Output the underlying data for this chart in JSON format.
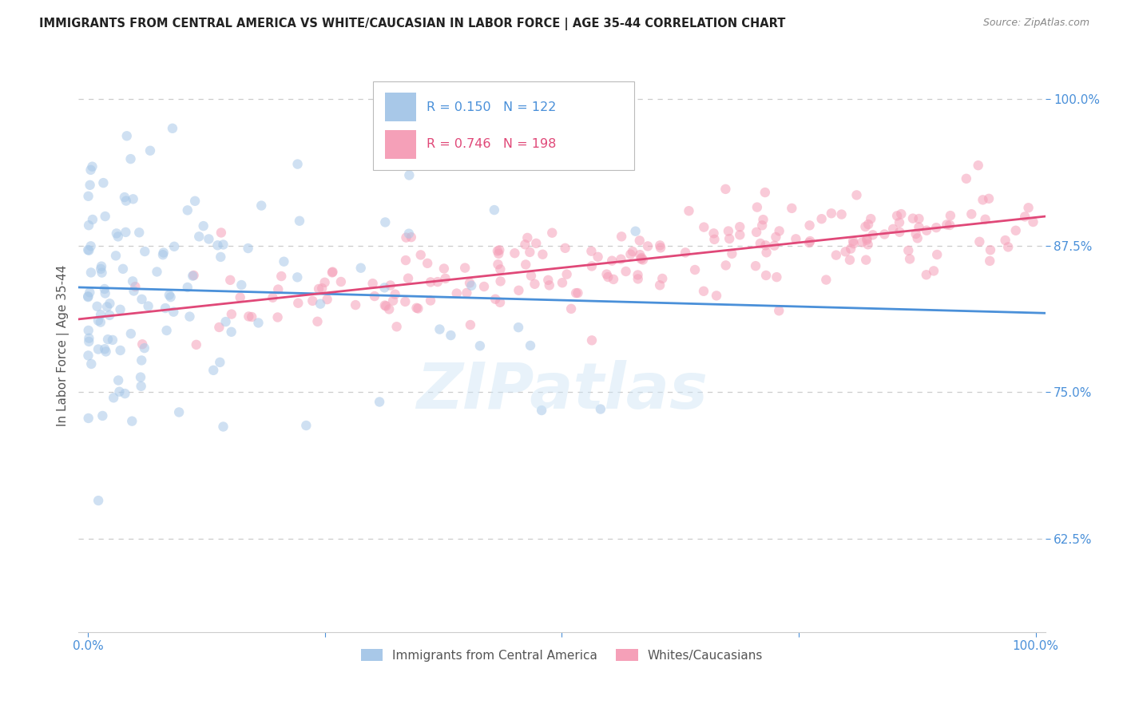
{
  "title": "IMMIGRANTS FROM CENTRAL AMERICA VS WHITE/CAUCASIAN IN LABOR FORCE | AGE 35-44 CORRELATION CHART",
  "source": "Source: ZipAtlas.com",
  "ylabel": "In Labor Force | Age 35-44",
  "blue_R": 0.15,
  "blue_N": 122,
  "pink_R": 0.746,
  "pink_N": 198,
  "blue_color": "#a8c8e8",
  "pink_color": "#f5a0b8",
  "blue_line_color": "#4a90d9",
  "pink_line_color": "#e04878",
  "watermark": "ZIPatlas",
  "ytick_values": [
    0.625,
    0.75,
    0.875,
    1.0
  ],
  "xtick_values": [
    0.0,
    0.25,
    0.5,
    0.75,
    1.0
  ],
  "legend_entries": [
    "Immigrants from Central America",
    "Whites/Caucasians"
  ],
  "title_color": "#222222",
  "axis_label_color": "#555555",
  "tick_color": "#4a90d9",
  "grid_color": "#cccccc",
  "background_color": "#ffffff",
  "marker_size": 80,
  "marker_alpha": 0.55
}
